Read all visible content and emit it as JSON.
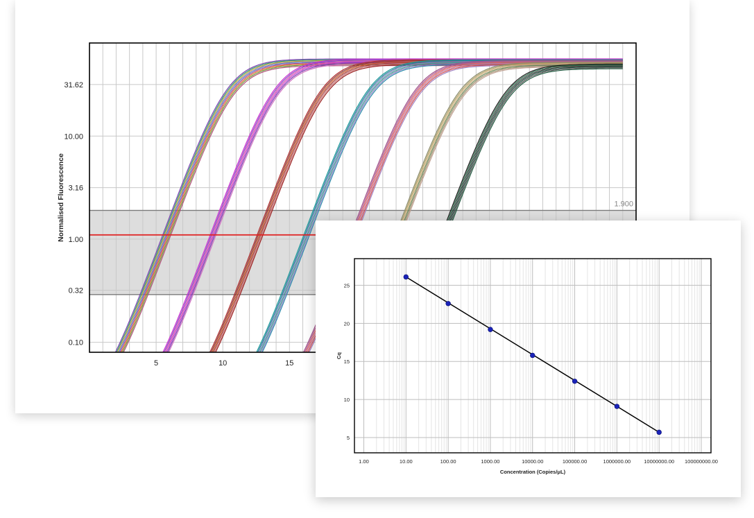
{
  "charts": {
    "amplification": {
      "type": "line",
      "title": "",
      "xlabel": "",
      "ylabel": "Normalised Fluorescence",
      "y_scale": "log",
      "ylim": [
        0.08,
        80
      ],
      "xlim": [
        0,
        41
      ],
      "x_ticks": [
        5,
        10,
        15
      ],
      "y_ticks": [
        {
          "value": 0.1,
          "label": "0.10"
        },
        {
          "value": 0.32,
          "label": "0.32"
        },
        {
          "value": 1.0,
          "label": "1.00"
        },
        {
          "value": 3.16,
          "label": "3.16"
        },
        {
          "value": 10.0,
          "label": "10.00"
        },
        {
          "value": 31.62,
          "label": "31.62"
        }
      ],
      "grid": true,
      "threshold": 1.1,
      "threshold_band": [
        0.29,
        1.9
      ],
      "band_upper_label": "1.900",
      "curve_model": {
        "x_start": 1,
        "x_end": 40,
        "baseline": 0.02
      },
      "curve_groups": [
        {
          "midpoint": 10.5,
          "plateau": 56,
          "slope": 1.22,
          "colors": [
            "#7a3fb0",
            "#2e9a6a",
            "#c79a3a",
            "#5577cc",
            "#9c4c96",
            "#e0662a",
            "#6a9a3a",
            "#b05078"
          ]
        },
        {
          "midpoint": 14.0,
          "plateau": 56,
          "slope": 1.22,
          "colors": [
            "#cc33cc",
            "#8844cc",
            "#dd55aa",
            "#c040d0",
            "#7a3fb0",
            "#d070c0"
          ]
        },
        {
          "midpoint": 17.5,
          "plateau": 55,
          "slope": 1.22,
          "colors": [
            "#b03030",
            "#8a3a3a",
            "#cc5a2a",
            "#a04040",
            "#c87070",
            "#9a2020"
          ]
        },
        {
          "midpoint": 21.0,
          "plateau": 55,
          "slope": 1.22,
          "colors": [
            "#1a9a9a",
            "#2a7a9a",
            "#7a8ac0",
            "#3a9a8a",
            "#8a7ac0",
            "#2a8aaa"
          ]
        },
        {
          "midpoint": 24.5,
          "plateau": 54,
          "slope": 1.22,
          "colors": [
            "#a0508a",
            "#b06090",
            "#e06060",
            "#c07aa0",
            "#d05050",
            "#a080c0"
          ]
        },
        {
          "midpoint": 27.8,
          "plateau": 52,
          "slope": 1.22,
          "colors": [
            "#8a8a6a",
            "#b0a060",
            "#d0b080",
            "#6a8a5a",
            "#a09070",
            "#c0a090"
          ]
        },
        {
          "midpoint": 31.2,
          "plateau": 50,
          "slope": 1.22,
          "colors": [
            "#1a1a1a",
            "#2a6a4a",
            "#3a3a3a",
            "#1a4a3a",
            "#4a4a4a",
            "#205a40"
          ]
        }
      ]
    },
    "standard_curve": {
      "type": "scatter",
      "title": "",
      "xlabel": "Concentration (Copies/μL)",
      "ylabel": "Cq",
      "x_scale": "log",
      "xlim": [
        0.6,
        170000000
      ],
      "ylim": [
        3,
        28.5
      ],
      "x_ticks": [
        {
          "value": 1,
          "label": "1.00"
        },
        {
          "value": 10,
          "label": "10.00"
        },
        {
          "value": 100,
          "label": "100.00"
        },
        {
          "value": 1000,
          "label": "1000.00"
        },
        {
          "value": 10000,
          "label": "10000.00"
        },
        {
          "value": 100000,
          "label": "100000.00"
        },
        {
          "value": 1000000,
          "label": "1000000.00"
        },
        {
          "value": 10000000,
          "label": "10000000.00"
        },
        {
          "value": 100000000,
          "label": "100000000.00"
        }
      ],
      "y_ticks": [
        5,
        10,
        15,
        20,
        25
      ],
      "grid": true,
      "x": [
        10,
        100,
        1000,
        10000,
        100000,
        1000000,
        10000000
      ],
      "y": [
        26.1,
        22.6,
        19.2,
        15.8,
        12.4,
        9.1,
        5.7
      ],
      "fit_line": {
        "x": [
          10,
          10000000
        ],
        "y": [
          26.1,
          5.7
        ]
      },
      "colors": {
        "points": "#1a23b8",
        "line": "#000000",
        "threshold": "#e02020",
        "band": "#dddddd"
      }
    }
  }
}
